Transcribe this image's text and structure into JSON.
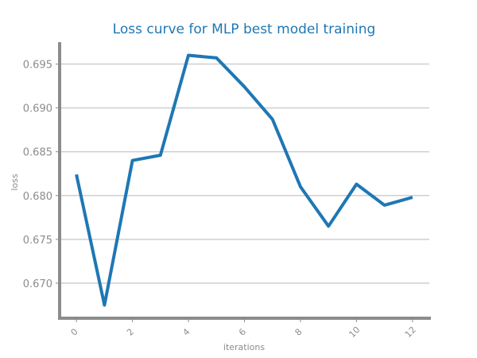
{
  "chart_data": {
    "type": "line",
    "title": "Loss curve for MLP best model training",
    "xlabel": "iterations",
    "ylabel": "loss",
    "xlim": [
      -0.6,
      12.6
    ],
    "ylim": [
      0.666,
      0.6975
    ],
    "xticks": [
      0,
      2,
      4,
      6,
      8,
      10,
      12
    ],
    "yticks": [
      0.67,
      0.675,
      0.68,
      0.685,
      0.69,
      0.695
    ],
    "ytick_labels": [
      "0.670",
      "0.675",
      "0.680",
      "0.685",
      "0.690",
      "0.695"
    ],
    "grid": "horizontal",
    "line_color": "#1f77b4",
    "series": [
      {
        "x": [
          0,
          1,
          2,
          3,
          4,
          5,
          6,
          7,
          8,
          9,
          10,
          11,
          12
        ],
        "y": [
          0.6824,
          0.6675,
          0.684,
          0.6846,
          0.696,
          0.6957,
          0.6924,
          0.6887,
          0.681,
          0.6765,
          0.6813,
          0.6789,
          0.6798
        ]
      }
    ]
  }
}
